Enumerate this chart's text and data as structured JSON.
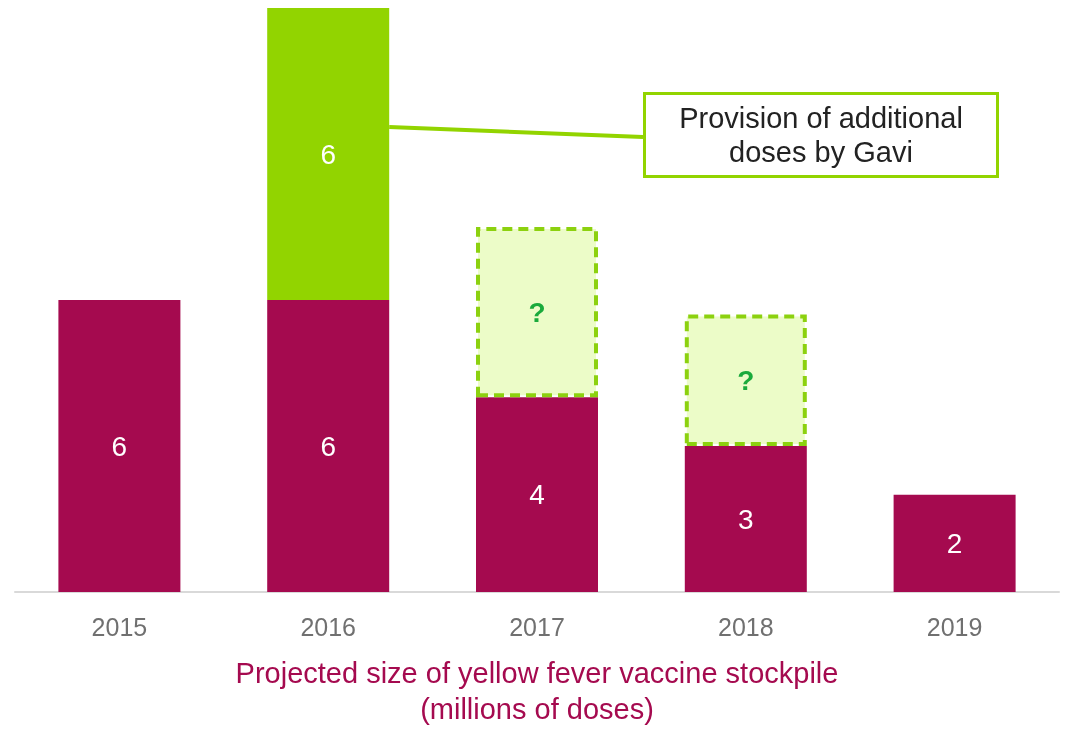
{
  "chart_data": {
    "type": "bar",
    "stacked": true,
    "categories": [
      "2015",
      "2016",
      "2017",
      "2018",
      "2019"
    ],
    "xlabel": "Projected size of yellow fever vaccine stockpile\n(millions of doses)",
    "series": [
      {
        "color": "#a50a4f",
        "values": [
          6,
          6,
          4,
          3,
          2
        ],
        "value_labels": [
          "6",
          "6",
          "4",
          "3",
          "2"
        ]
      },
      {
        "color": "#92d400",
        "values": [
          null,
          6,
          null,
          null,
          null
        ],
        "value_labels": [
          null,
          "6",
          null,
          null,
          null
        ]
      },
      {
        "color": "#ecfcc8",
        "line_style": "dashed",
        "values": [
          null,
          null,
          3.5,
          2.7,
          null
        ],
        "value_labels": [
          null,
          null,
          "?",
          "?",
          null
        ]
      }
    ],
    "annotations": [
      "Provision of additional doses by Gavi"
    ]
  }
}
